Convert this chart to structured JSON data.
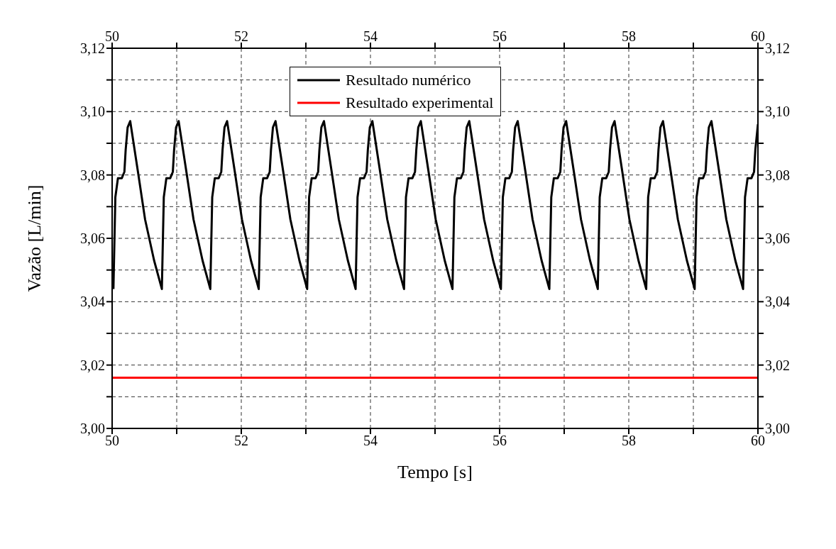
{
  "chart_data": {
    "type": "line",
    "xlabel": "Tempo [s]",
    "ylabel": "Vazão [L/min]",
    "xlim": [
      50,
      60
    ],
    "xticks": [
      50,
      {
        "value": 51,
        "label": null
      },
      52,
      {
        "value": 53,
        "label": null
      },
      54,
      {
        "value": 55,
        "label": null
      },
      56,
      {
        "value": 57,
        "label": null
      },
      58,
      {
        "value": 59,
        "label": null
      },
      60
    ],
    "x2lim": [
      50,
      60
    ],
    "x2ticks": [
      50,
      {
        "value": 51,
        "label": null
      },
      52,
      {
        "value": 53,
        "label": null
      },
      54,
      {
        "value": 55,
        "label": null
      },
      56,
      {
        "value": 57,
        "label": null
      },
      58,
      {
        "value": 59,
        "label": null
      },
      60
    ],
    "ylim": [
      3.0,
      3.12
    ],
    "yticks": [
      {
        "value": 3.0,
        "label": "3,00"
      },
      {
        "value": 3.01,
        "label": null
      },
      {
        "value": 3.02,
        "label": "3,02"
      },
      {
        "value": 3.03,
        "label": null
      },
      {
        "value": 3.04,
        "label": "3,04"
      },
      {
        "value": 3.05,
        "label": null
      },
      {
        "value": 3.06,
        "label": "3,06"
      },
      {
        "value": 3.07,
        "label": null
      },
      {
        "value": 3.08,
        "label": "3,08"
      },
      {
        "value": 3.09,
        "label": null
      },
      {
        "value": 3.1,
        "label": "3,10"
      },
      {
        "value": 3.11,
        "label": null
      },
      {
        "value": 3.12,
        "label": "3,12"
      }
    ],
    "y2lim": [
      3.0,
      3.12
    ],
    "y2ticks": [
      {
        "value": 3.0,
        "label": "3,00"
      },
      {
        "value": 3.01,
        "label": null
      },
      {
        "value": 3.02,
        "label": "3,02"
      },
      {
        "value": 3.03,
        "label": null
      },
      {
        "value": 3.04,
        "label": "3,04"
      },
      {
        "value": 3.05,
        "label": null
      },
      {
        "value": 3.06,
        "label": "3,06"
      },
      {
        "value": 3.07,
        "label": null
      },
      {
        "value": 3.08,
        "label": "3,08"
      },
      {
        "value": 3.09,
        "label": null
      },
      {
        "value": 3.1,
        "label": "3,10"
      },
      {
        "value": 3.11,
        "label": null
      },
      {
        "value": 3.12,
        "label": "3,12"
      }
    ],
    "grid": true,
    "legend": "top",
    "marker": "none",
    "line_style": "solid",
    "series": [
      {
        "name": "Resultado numérico",
        "color": "#000000",
        "x": [
          50.02,
          50.05,
          50.09,
          50.15,
          50.19,
          50.21,
          50.24,
          50.28,
          50.4,
          50.51,
          50.65,
          50.77,
          50.8,
          50.84,
          50.9,
          50.94,
          50.96,
          50.99,
          51.03,
          51.15,
          51.26,
          51.4,
          51.52,
          51.55,
          51.59,
          51.65,
          51.69,
          51.71,
          51.74,
          51.78,
          51.9,
          52.01,
          52.15,
          52.27,
          52.3,
          52.34,
          52.4,
          52.44,
          52.46,
          52.49,
          52.53,
          52.65,
          52.76,
          52.9,
          53.02,
          53.05,
          53.09,
          53.15,
          53.19,
          53.21,
          53.24,
          53.28,
          53.4,
          53.51,
          53.65,
          53.77,
          53.8,
          53.84,
          53.9,
          53.94,
          53.96,
          53.99,
          54.03,
          54.15,
          54.26,
          54.4,
          54.52,
          54.55,
          54.59,
          54.65,
          54.69,
          54.71,
          54.74,
          54.78,
          54.9,
          55.01,
          55.15,
          55.27,
          55.3,
          55.34,
          55.4,
          55.44,
          55.46,
          55.49,
          55.53,
          55.65,
          55.76,
          55.9,
          56.02,
          56.05,
          56.09,
          56.15,
          56.19,
          56.21,
          56.24,
          56.28,
          56.4,
          56.51,
          56.65,
          56.77,
          56.8,
          56.84,
          56.9,
          56.94,
          56.96,
          56.99,
          57.03,
          57.15,
          57.26,
          57.4,
          57.52,
          57.55,
          57.59,
          57.65,
          57.69,
          57.71,
          57.74,
          57.78,
          57.9,
          58.01,
          58.15,
          58.27,
          58.3,
          58.34,
          58.4,
          58.44,
          58.46,
          58.49,
          58.53,
          58.65,
          58.76,
          58.9,
          59.02,
          59.05,
          59.09,
          59.15,
          59.19,
          59.21,
          59.24,
          59.28,
          59.4,
          59.51,
          59.65,
          59.77,
          59.8,
          59.84,
          59.9,
          59.94,
          59.96,
          60.0
        ],
        "values": [
          3.044,
          3.073,
          3.079,
          3.079,
          3.081,
          3.088,
          3.095,
          3.097,
          3.081,
          3.066,
          3.053,
          3.044,
          3.073,
          3.079,
          3.079,
          3.081,
          3.088,
          3.095,
          3.097,
          3.081,
          3.066,
          3.053,
          3.044,
          3.073,
          3.079,
          3.079,
          3.081,
          3.088,
          3.095,
          3.097,
          3.081,
          3.066,
          3.053,
          3.044,
          3.073,
          3.079,
          3.079,
          3.081,
          3.088,
          3.095,
          3.097,
          3.081,
          3.066,
          3.053,
          3.044,
          3.073,
          3.079,
          3.079,
          3.081,
          3.088,
          3.095,
          3.097,
          3.081,
          3.066,
          3.053,
          3.044,
          3.073,
          3.079,
          3.079,
          3.081,
          3.088,
          3.095,
          3.097,
          3.081,
          3.066,
          3.053,
          3.044,
          3.073,
          3.079,
          3.079,
          3.081,
          3.088,
          3.095,
          3.097,
          3.081,
          3.066,
          3.053,
          3.044,
          3.073,
          3.079,
          3.079,
          3.081,
          3.088,
          3.095,
          3.097,
          3.081,
          3.066,
          3.053,
          3.044,
          3.073,
          3.079,
          3.079,
          3.081,
          3.088,
          3.095,
          3.097,
          3.081,
          3.066,
          3.053,
          3.044,
          3.073,
          3.079,
          3.079,
          3.081,
          3.088,
          3.095,
          3.097,
          3.081,
          3.066,
          3.053,
          3.044,
          3.073,
          3.079,
          3.079,
          3.081,
          3.088,
          3.095,
          3.097,
          3.081,
          3.066,
          3.053,
          3.044,
          3.073,
          3.079,
          3.079,
          3.081,
          3.088,
          3.095,
          3.097,
          3.081,
          3.066,
          3.053,
          3.044,
          3.073,
          3.079,
          3.079,
          3.081,
          3.088,
          3.095,
          3.097,
          3.081,
          3.066,
          3.053,
          3.044,
          3.073,
          3.079,
          3.079,
          3.081,
          3.088,
          3.096
        ]
      },
      {
        "name": "Resultado experimental",
        "color": "#ff0000",
        "x": [
          50,
          60
        ],
        "values": [
          3.016,
          3.016
        ]
      }
    ]
  }
}
